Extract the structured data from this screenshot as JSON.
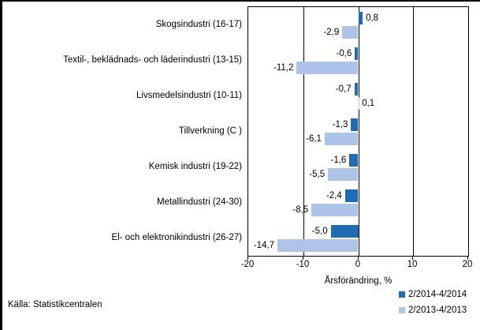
{
  "window": {
    "bg": "#FFFFFF",
    "frame_color": "#000000"
  },
  "source_note": "Källa: Statistikcentralen",
  "chart_data": {
    "type": "bar",
    "orientation": "horizontal",
    "title": "",
    "xlabel": "Årsförändring, %",
    "ylabel": "",
    "xlim": [
      -20,
      20
    ],
    "xticks": [
      -20,
      -10,
      0,
      10,
      20
    ],
    "xtick_labels": [
      "-20",
      "-10",
      "0",
      "10",
      "20"
    ],
    "grid": true,
    "axis_color": "#000000",
    "legend_position": "bottom-right",
    "categories": [
      "Skogsindustri (16-17)",
      "Textil-, beklädnads- och läderindustri (13-15)",
      "Livsmedelsindustri (10-11)",
      "Tillverkning (C )",
      "Kemisk industri (19-22)",
      "Metallindustri (24-30)",
      "El- och elektronikindustri (26-27)"
    ],
    "series": [
      {
        "name": "2/2014-4/2014",
        "color": "#1F6BB4",
        "values": [
          0.8,
          -0.6,
          -0.7,
          -1.3,
          -1.6,
          -2.4,
          -5.0
        ],
        "value_labels": [
          "0,8",
          "-0,6",
          "-0,7",
          "-1,3",
          "-1,6",
          "-2,4",
          "-5,0"
        ]
      },
      {
        "name": "2/2013-4/2013",
        "color": "#AEC3E8",
        "values": [
          -2.9,
          -11.2,
          0.1,
          -6.1,
          -5.5,
          -8.5,
          -14.7
        ],
        "value_labels": [
          "-2,9",
          "-11,2",
          "0,1",
          "-6,1",
          "-5,5",
          "-8,5",
          "-14,7"
        ]
      }
    ]
  }
}
